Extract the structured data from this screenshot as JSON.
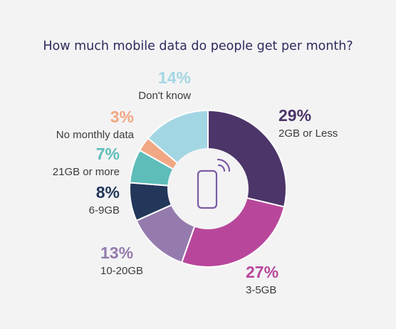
{
  "chart_data": {
    "type": "pie",
    "title": "How much mobile data do people get per month?",
    "slices": [
      {
        "label": "2GB or Less",
        "value": 29,
        "value_label": "29%",
        "color": "#4c3569"
      },
      {
        "label": "3-5GB",
        "value": 27,
        "value_label": "27%",
        "color": "#b8479b"
      },
      {
        "label": "10-20GB",
        "value": 13,
        "value_label": "13%",
        "color": "#957bad"
      },
      {
        "label": "6-9GB",
        "value": 8,
        "value_label": "8%",
        "color": "#23375a"
      },
      {
        "label": "21GB or more",
        "value": 7,
        "value_label": "7%",
        "color": "#5ebdb9"
      },
      {
        "label": "No monthly data",
        "value": 3,
        "value_label": "3%",
        "color": "#f1a783"
      },
      {
        "label": "Don't know",
        "value": 14,
        "value_label": "14%",
        "color": "#a3d6e3"
      }
    ],
    "hole": "donut",
    "center_icon": "mobile-phone-wifi-icon"
  },
  "icon_color": "#7b5ba3"
}
